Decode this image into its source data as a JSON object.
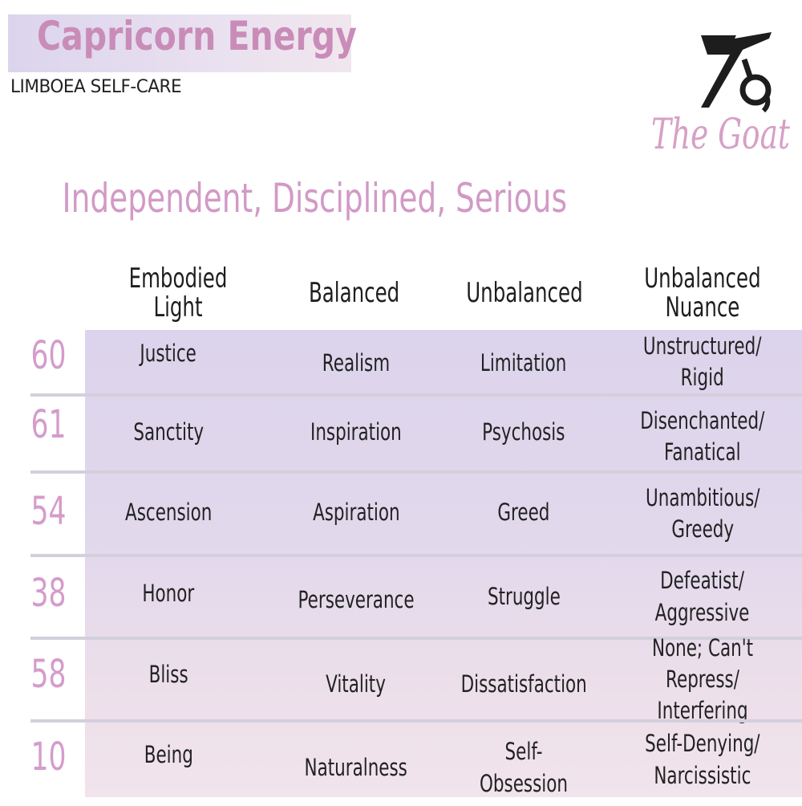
{
  "header": {
    "title": "Capricorn Energy",
    "subtitle": "LIMBOEA SELF-CARE",
    "sign_name": "The Goat",
    "glyph_icon": "capricorn-glyph-icon",
    "traits": "Independent, Disciplined, Serious"
  },
  "table": {
    "columns": [
      "Embodied Light",
      "Balanced",
      "Unbalanced",
      "Unbalanced\nNuance"
    ],
    "rows": [
      {
        "number": "60",
        "embodied_light": "Justice",
        "balanced": "Realism",
        "unbalanced": "Limitation",
        "nuance": "Unstructured/\nRigid"
      },
      {
        "number": "61",
        "embodied_light": "Sanctity",
        "balanced": "Inspiration",
        "unbalanced": "Psychosis",
        "nuance": "Disenchanted/\nFanatical"
      },
      {
        "number": "54",
        "embodied_light": "Ascension",
        "balanced": "Aspiration",
        "unbalanced": "Greed",
        "nuance": "Unambitious/\nGreedy"
      },
      {
        "number": "38",
        "embodied_light": "Honor",
        "balanced": "Perseverance",
        "unbalanced": "Struggle",
        "nuance": "Defeatist/\nAggressive"
      },
      {
        "number": "58",
        "embodied_light": "Bliss",
        "balanced": "Vitality",
        "unbalanced": "Dissatisfaction",
        "nuance": "None; Can't Repress/\nInterfering"
      },
      {
        "number": "10",
        "embodied_light": "Being",
        "balanced": "Naturalness",
        "unbalanced": "Self-Obsession",
        "nuance": "Self-Denying/\nNarcissistic"
      }
    ]
  },
  "colors": {
    "title_pink": "#c98cb8",
    "accent_pink": "#d49ccb",
    "lavender": "#dcd4ec",
    "blush": "#f1e4ec"
  }
}
